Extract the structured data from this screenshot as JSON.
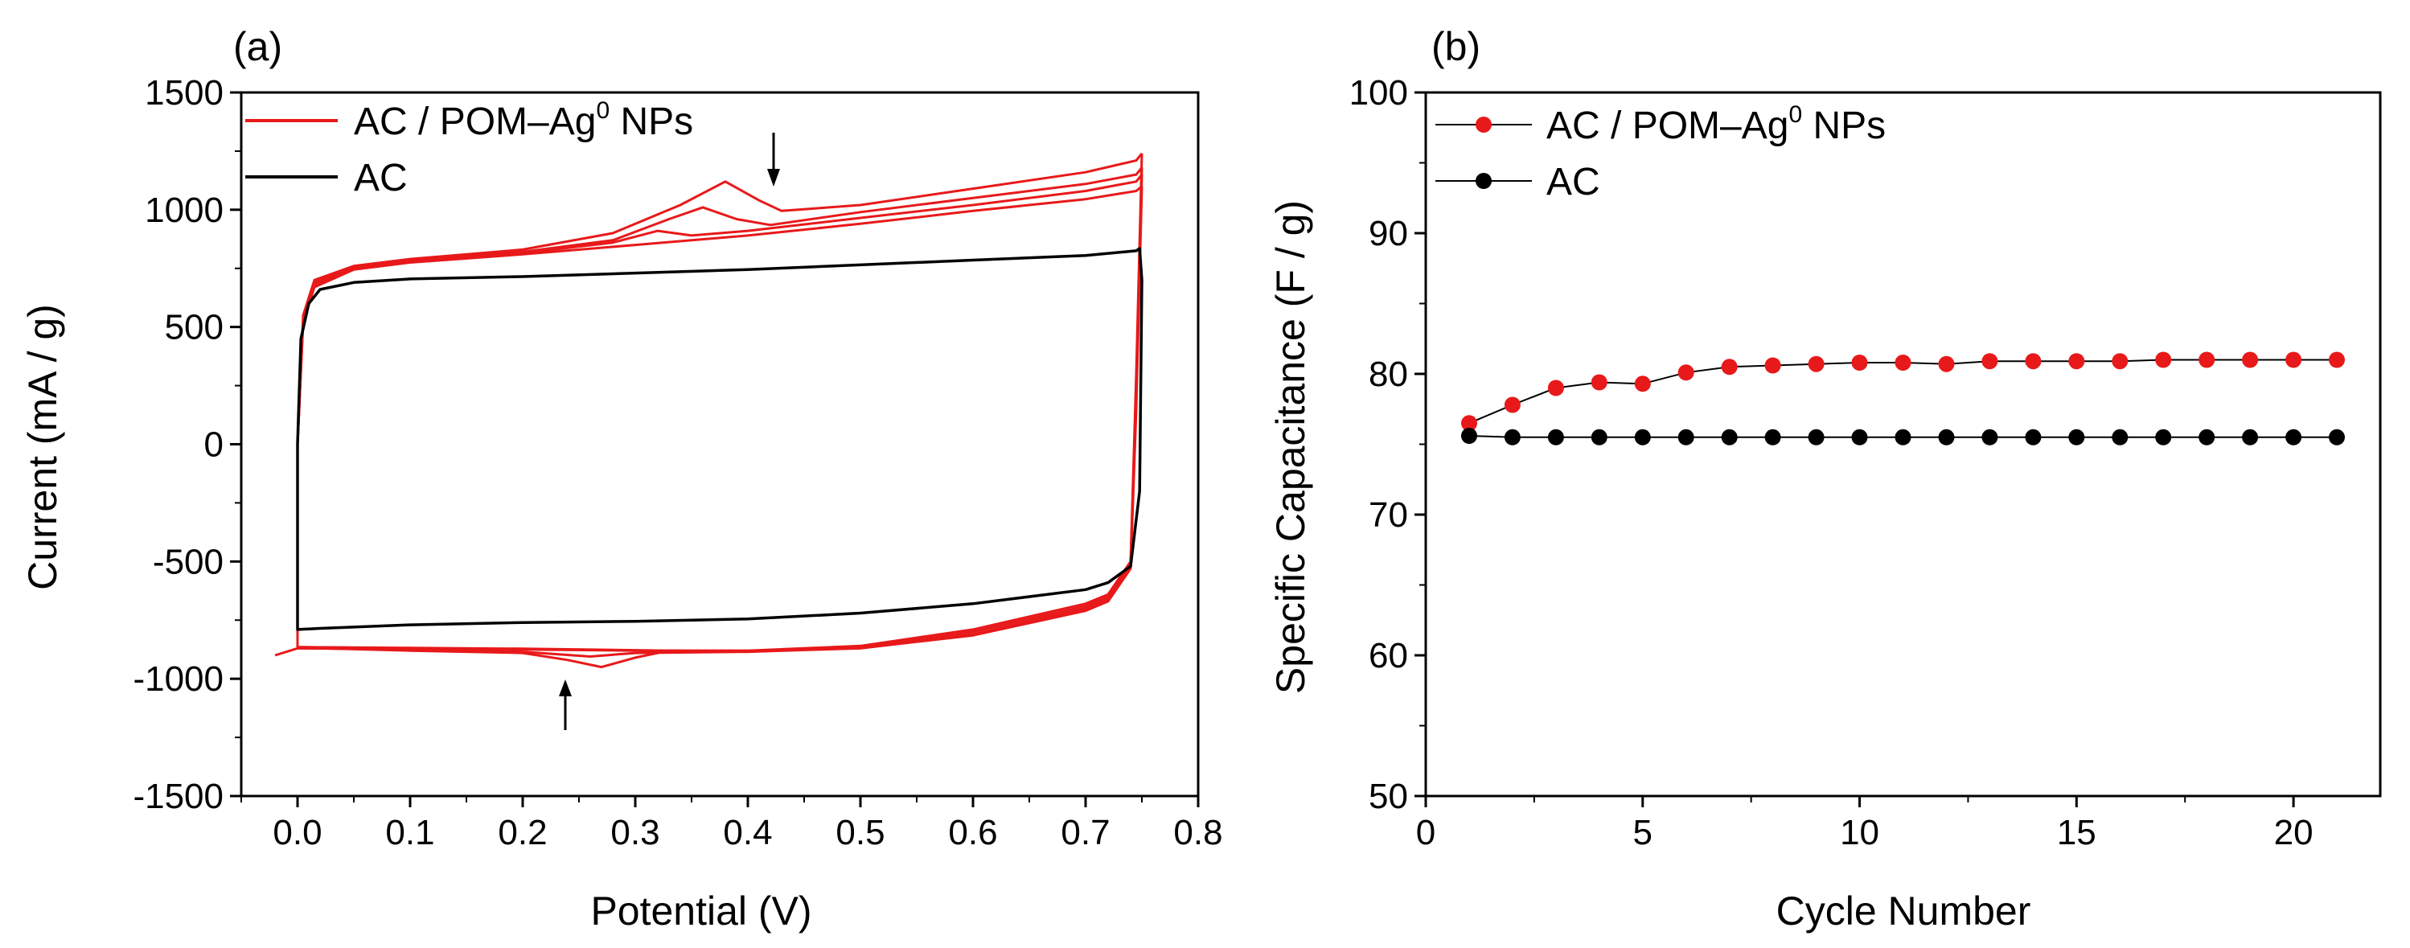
{
  "chart_data": [
    {
      "panel": "(a)",
      "type": "line",
      "xlabel": "Potential (V)",
      "ylabel": "Current (mA / g)",
      "xlim": [
        -0.05,
        0.8
      ],
      "ylim": [
        -1500,
        1500
      ],
      "xticks": [
        "0.0",
        "0.1",
        "0.2",
        "0.3",
        "0.4",
        "0.5",
        "0.6",
        "0.7",
        "0.8"
      ],
      "yticks": [
        "1500",
        "1000",
        "500",
        "0",
        "-500",
        "-1000",
        "-1500"
      ],
      "legend": [
        {
          "name": "AC / POM–Ag",
          "sup": "0",
          "suffix": " NPs",
          "color": "#e8191a"
        },
        {
          "name": "AC",
          "color": "#000000"
        }
      ],
      "series": [
        {
          "name": "AC / POM–Ag0 NPs (upper sweeps)",
          "color": "#e8191a",
          "cycles": [
            {
              "x": [
                0.0,
                0.005,
                0.015,
                0.05,
                0.1,
                0.2,
                0.28,
                0.34,
                0.38,
                0.41,
                0.43,
                0.5,
                0.6,
                0.7,
                0.745,
                0.75
              ],
              "y": [
                0,
                550,
                700,
                760,
                790,
                830,
                900,
                1020,
                1120,
                1040,
                995,
                1020,
                1090,
                1160,
                1210,
                1240
              ]
            },
            {
              "x": [
                0.0,
                0.005,
                0.015,
                0.05,
                0.1,
                0.2,
                0.28,
                0.33,
                0.36,
                0.39,
                0.42,
                0.5,
                0.6,
                0.7,
                0.745,
                0.75
              ],
              "y": [
                0,
                540,
                690,
                755,
                785,
                820,
                870,
                960,
                1010,
                960,
                935,
                990,
                1050,
                1110,
                1150,
                1180
              ]
            },
            {
              "x": [
                0.0,
                0.005,
                0.015,
                0.05,
                0.1,
                0.2,
                0.28,
                0.32,
                0.35,
                0.4,
                0.5,
                0.6,
                0.7,
                0.745,
                0.75
              ],
              "y": [
                0,
                530,
                680,
                750,
                780,
                815,
                860,
                910,
                890,
                910,
                965,
                1020,
                1080,
                1120,
                1150
              ]
            },
            {
              "x": [
                0.0,
                0.005,
                0.015,
                0.05,
                0.1,
                0.2,
                0.3,
                0.4,
                0.5,
                0.6,
                0.7,
                0.745,
                0.75
              ],
              "y": [
                0,
                520,
                670,
                745,
                775,
                810,
                850,
                890,
                940,
                995,
                1045,
                1080,
                1100
              ]
            }
          ]
        },
        {
          "name": "AC / POM–Ag0 NPs (lower sweeps)",
          "color": "#e8191a",
          "cycles": [
            {
              "x": [
                0.75,
                0.745,
                0.74,
                0.72,
                0.7,
                0.6,
                0.5,
                0.4,
                0.33,
                0.3,
                0.27,
                0.24,
                0.2,
                0.1,
                0.02,
                0.0,
                -0.02
              ],
              "y": [
                1240,
                300,
                -500,
                -640,
                -680,
                -790,
                -860,
                -880,
                -880,
                -910,
                -950,
                -920,
                -890,
                -880,
                -870,
                -870,
                -900
              ]
            },
            {
              "x": [
                0.75,
                0.745,
                0.74,
                0.72,
                0.7,
                0.6,
                0.5,
                0.4,
                0.3,
                0.26,
                0.2,
                0.1,
                0.0
              ],
              "y": [
                1180,
                250,
                -510,
                -650,
                -690,
                -800,
                -865,
                -885,
                -890,
                -905,
                -885,
                -875,
                -870
              ]
            },
            {
              "x": [
                0.75,
                0.745,
                0.74,
                0.72,
                0.7,
                0.6,
                0.5,
                0.4,
                0.3,
                0.2,
                0.1,
                0.0
              ],
              "y": [
                1150,
                200,
                -520,
                -660,
                -700,
                -810,
                -870,
                -880,
                -880,
                -875,
                -870,
                -865
              ]
            },
            {
              "x": [
                0.75,
                0.745,
                0.74,
                0.72,
                0.7,
                0.6,
                0.5,
                0.4,
                0.3,
                0.2,
                0.1,
                0.0,
                0.0
              ],
              "y": [
                1100,
                150,
                -530,
                -670,
                -710,
                -815,
                -870,
                -885,
                -878,
                -872,
                -868,
                -865,
                0
              ]
            }
          ]
        },
        {
          "name": "AC",
          "color": "#000000",
          "cycles": [
            {
              "x": [
                0.0,
                0.003,
                0.01,
                0.02,
                0.05,
                0.1,
                0.2,
                0.3,
                0.4,
                0.5,
                0.6,
                0.7,
                0.745,
                0.748,
                0.75,
                0.748,
                0.74,
                0.72,
                0.7,
                0.6,
                0.5,
                0.4,
                0.3,
                0.2,
                0.1,
                0.02,
                0.0,
                0.0
              ],
              "y": [
                0,
                450,
                600,
                660,
                690,
                705,
                715,
                730,
                745,
                765,
                785,
                805,
                825,
                835,
                700,
                -200,
                -520,
                -590,
                -620,
                -680,
                -720,
                -745,
                -755,
                -760,
                -770,
                -785,
                -790,
                0
              ]
            }
          ]
        }
      ],
      "annotations": [
        "arrow down at ~0.42 V above oxidation peak",
        "arrow up at ~0.24 V below reduction peak"
      ]
    },
    {
      "panel": "(b)",
      "type": "scatter",
      "xlabel": "Cycle Number",
      "ylabel": "Specific Capacitance (F / g)",
      "xlim": [
        0,
        22
      ],
      "ylim": [
        50,
        100
      ],
      "xticks": [
        "0",
        "5",
        "10",
        "15",
        "20"
      ],
      "yticks": [
        "100",
        "90",
        "80",
        "70",
        "60",
        "50"
      ],
      "legend": [
        {
          "name": "AC / POM–Ag",
          "sup": "0",
          "suffix": " NPs",
          "color": "#e8191a"
        },
        {
          "name": "AC",
          "color": "#000000"
        }
      ],
      "x": [
        1,
        2,
        3,
        4,
        5,
        6,
        7,
        8,
        9,
        10,
        11,
        12,
        13,
        14,
        15,
        16,
        17,
        18,
        19,
        20,
        21
      ],
      "series": [
        {
          "name": "AC / POM–Ag0 NPs",
          "color": "#e8191a",
          "values": [
            76.5,
            77.8,
            79.0,
            79.4,
            79.3,
            80.1,
            80.5,
            80.6,
            80.7,
            80.8,
            80.8,
            80.7,
            80.9,
            80.9,
            80.9,
            80.9,
            81.0,
            81.0,
            81.0,
            81.0,
            81.0
          ]
        },
        {
          "name": "AC",
          "color": "#000000",
          "values": [
            75.6,
            75.5,
            75.5,
            75.5,
            75.5,
            75.5,
            75.5,
            75.5,
            75.5,
            75.5,
            75.5,
            75.5,
            75.5,
            75.5,
            75.5,
            75.5,
            75.5,
            75.5,
            75.5,
            75.5,
            75.5
          ]
        }
      ]
    }
  ]
}
